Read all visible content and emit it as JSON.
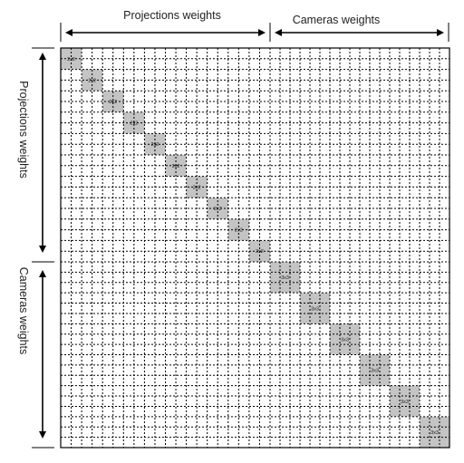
{
  "top_headers": {
    "projections": "Projections weights",
    "cameras": "Cameras weights"
  },
  "side_headers": {
    "projections": "Projections weights",
    "cameras": "Cameras weights"
  },
  "matrix": {
    "projection_blocks": 10,
    "projection_block_label": "2x2",
    "camera_blocks": 6,
    "camera_block_label": "3x3",
    "block_fill": "#c4c4c4",
    "grid_color": "#000000",
    "grid_style": "dotted"
  }
}
